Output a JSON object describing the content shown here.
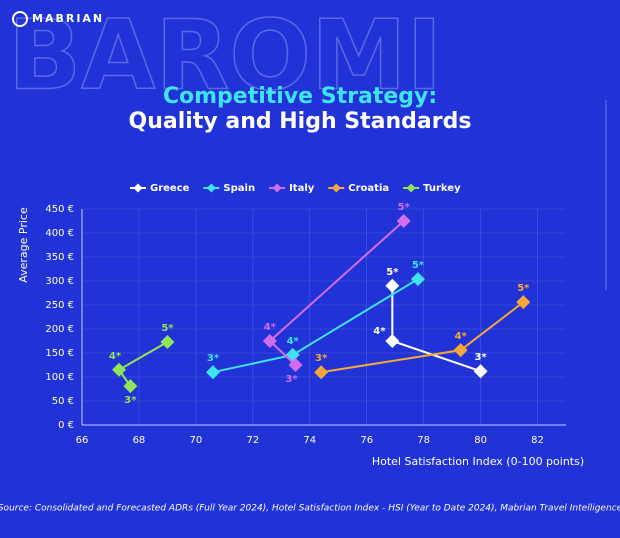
{
  "brand": "MABRIAN",
  "background_word": "BAROMI",
  "chart_data": {
    "type": "line",
    "title": "Competitive Strategy:",
    "subtitle": "Quality and High Standards",
    "x_label": "Hotel Satisfaction Index (0-100 points)",
    "y_label": "Average Price",
    "xlim": [
      66,
      83
    ],
    "xticks": [
      66,
      68,
      70,
      72,
      74,
      76,
      78,
      80,
      82
    ],
    "ylim": [
      0,
      450
    ],
    "yticks": [
      {
        "value": 0,
        "label": "0 €"
      },
      {
        "value": 50,
        "label": "50 €"
      },
      {
        "value": 100,
        "label": "100 €"
      },
      {
        "value": 150,
        "label": "150 €"
      },
      {
        "value": 200,
        "label": "200 €"
      },
      {
        "value": 250,
        "label": "250 €"
      },
      {
        "value": 300,
        "label": "300 €"
      },
      {
        "value": 350,
        "label": "350 €"
      },
      {
        "value": 400,
        "label": "400 €"
      },
      {
        "value": 450,
        "label": "450 €"
      }
    ],
    "grid": true,
    "legend": "top",
    "series": [
      {
        "name": "Greece",
        "color": "#ffffff",
        "x": [
          80.0,
          76.9,
          76.9
        ],
        "values": [
          112,
          175,
          290
        ],
        "point_labels": [
          "3*",
          "4*",
          "5*"
        ]
      },
      {
        "name": "Spain",
        "color": "#3fe3f2",
        "x": [
          70.6,
          73.4,
          77.8
        ],
        "values": [
          110,
          146,
          304
        ],
        "point_labels": [
          "3*",
          "4*",
          "5*"
        ]
      },
      {
        "name": "Italy",
        "color": "#d46cf0",
        "x": [
          73.5,
          72.6,
          77.3
        ],
        "values": [
          125,
          175,
          425
        ],
        "point_labels": [
          "3*",
          "4*",
          "5*"
        ]
      },
      {
        "name": "Croatia",
        "color": "#f5a83a",
        "x": [
          74.4,
          79.3,
          81.5
        ],
        "values": [
          110,
          156,
          256
        ],
        "point_labels": [
          "3*",
          "4*",
          "5*"
        ]
      },
      {
        "name": "Turkey",
        "color": "#92e35a",
        "x": [
          67.7,
          67.3,
          69.0
        ],
        "values": [
          81,
          115,
          173
        ],
        "point_labels": [
          "3*",
          "4*",
          "5*"
        ]
      }
    ]
  },
  "source": "Source: Consolidated and Forecasted ADRs (Full Year 2024), Hotel Satisfaction Index - HSI (Year to Date 2024), Mabrian Travel Intelligence"
}
